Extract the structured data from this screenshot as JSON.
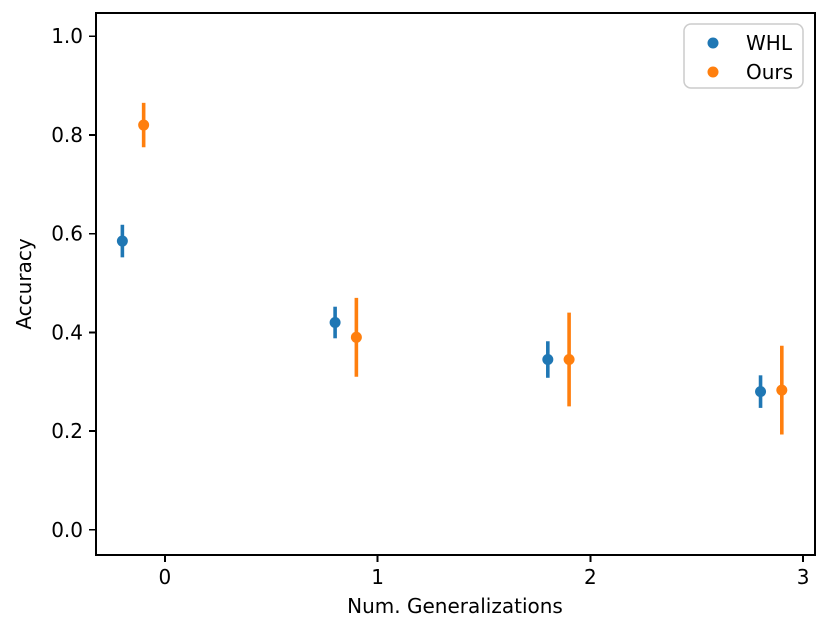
{
  "figure": {
    "background": "#ffffff",
    "spine_color": "#000000"
  },
  "chart_data": {
    "type": "scatter",
    "subtype": "errorbar",
    "title": "",
    "xlabel": "Num. Generalizations",
    "ylabel": "Accuracy",
    "xlim": [
      -0.324,
      3.056
    ],
    "ylim": [
      -0.051,
      1.047
    ],
    "grid": false,
    "xticks": {
      "values": [
        0,
        1,
        2,
        3
      ],
      "labels": [
        "0",
        "1",
        "2",
        "3"
      ]
    },
    "yticks": {
      "values": [
        0.0,
        0.2,
        0.4,
        0.6,
        0.8,
        1.0
      ],
      "labels": [
        "0.0",
        "0.2",
        "0.4",
        "0.6",
        "0.8",
        "1.0"
      ]
    },
    "legend": {
      "position": "upper-right",
      "border_color": "#cccccc",
      "background": "#ffffff",
      "entries": [
        "WHL",
        "Ours"
      ]
    },
    "series": [
      {
        "name": "WHL",
        "color": "#1f77b4",
        "marker": "circle",
        "x": [
          -0.2,
          0.8,
          1.8,
          2.8
        ],
        "y": [
          0.585,
          0.42,
          0.345,
          0.28
        ],
        "yerr": [
          0.033,
          0.032,
          0.037,
          0.033
        ]
      },
      {
        "name": "Ours",
        "color": "#ff7f0e",
        "marker": "circle",
        "x": [
          -0.1,
          0.9,
          1.9,
          2.9
        ],
        "y": [
          0.82,
          0.39,
          0.345,
          0.283
        ],
        "yerr": [
          0.045,
          0.08,
          0.095,
          0.09
        ]
      }
    ]
  }
}
